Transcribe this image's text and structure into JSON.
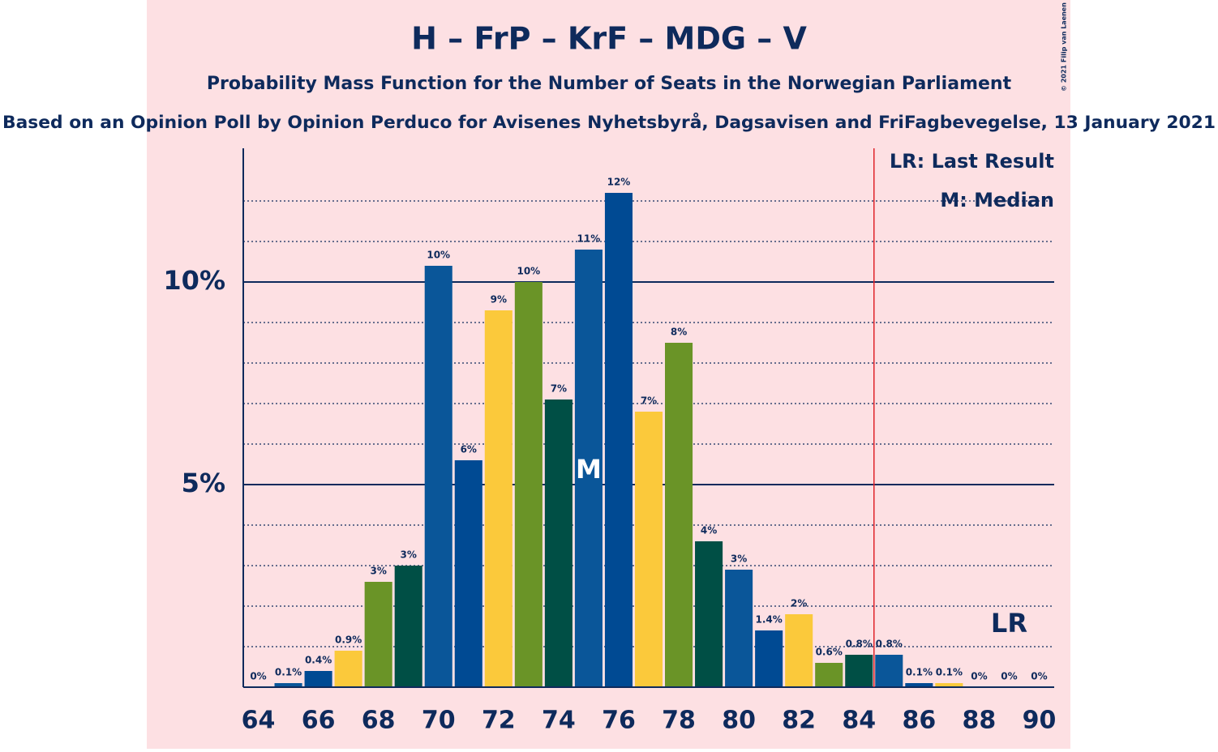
{
  "chart_data": {
    "type": "bar",
    "title": "H – FrP – KrF – MDG – V",
    "subtitle": "Probability Mass Function for the Number of Seats in the Norwegian Parliament",
    "source": "Based on an Opinion Poll by Opinion Perduco for Avisenes Nyhetsbyrå, Dagsavisen and FriFagbevegelse, 13 January 2021",
    "copyright": "© 2021 Filip van Laenen",
    "x": [
      64,
      65,
      66,
      67,
      68,
      69,
      70,
      71,
      72,
      73,
      74,
      75,
      76,
      77,
      78,
      79,
      80,
      81,
      82,
      83,
      84,
      85,
      86,
      87,
      88,
      89,
      90
    ],
    "values": [
      0,
      0.1,
      0.4,
      0.9,
      2.6,
      3.0,
      10.4,
      5.6,
      9.3,
      10.0,
      7.1,
      10.8,
      12.2,
      6.8,
      8.5,
      3.6,
      2.9,
      1.4,
      1.8,
      0.6,
      0.8,
      0.8,
      0.1,
      0.1,
      0,
      0,
      0
    ],
    "value_labels": [
      "0%",
      "0.1%",
      "0.4%",
      "0.9%",
      "3%",
      "3%",
      "10%",
      "6%",
      "9%",
      "10%",
      "7%",
      "11%",
      "12%",
      "7%",
      "8%",
      "4%",
      "3%",
      "1.4%",
      "2%",
      "0.6%",
      "0.8%",
      "0.8%",
      "0.1%",
      "0.1%",
      "0%",
      "0%",
      "0%"
    ],
    "colors": [
      "#0a5699",
      "#0a5699",
      "#004a93",
      "#fbc93b",
      "#6a9427",
      "#004f45",
      "#0a5699",
      "#004a93",
      "#fbc93b",
      "#6a9427",
      "#004f45",
      "#0a5699",
      "#004a93",
      "#fbc93b",
      "#6a9427",
      "#004f45",
      "#0a5699",
      "#004a93",
      "#fbc93b",
      "#6a9427",
      "#004f45",
      "#0a5699",
      "#004a93",
      "#fbc93b",
      "#6a9427",
      "#004f45",
      "#0a5699"
    ],
    "xlim": [
      63.5,
      90.5
    ],
    "xticks": [
      64,
      66,
      68,
      70,
      72,
      74,
      76,
      78,
      80,
      82,
      84,
      86,
      88,
      90
    ],
    "ylim": [
      0,
      13.3
    ],
    "yticks": [
      {
        "value": 5,
        "label": "5%"
      },
      {
        "value": 10,
        "label": "10%"
      }
    ],
    "minor_yticks": [
      1,
      2,
      3,
      4,
      6,
      7,
      8,
      9,
      11,
      12
    ],
    "median": 75,
    "median_label": "M",
    "last_result": 89,
    "last_result_label": "LR",
    "threshold": 84.5,
    "legend": [
      "LR: Last Result",
      "M: Median"
    ]
  }
}
